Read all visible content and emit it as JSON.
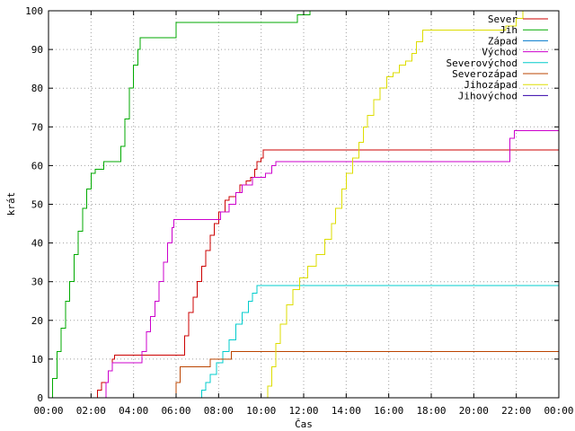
{
  "chart_data": {
    "type": "line",
    "title": "",
    "xlabel": "Čas",
    "ylabel": "krát",
    "xlim": [
      0,
      24
    ],
    "ylim": [
      0,
      100
    ],
    "x_ticks": [
      {
        "value": 0,
        "label": "00:00"
      },
      {
        "value": 2,
        "label": "02:00"
      },
      {
        "value": 4,
        "label": "04:00"
      },
      {
        "value": 6,
        "label": "06:00"
      },
      {
        "value": 8,
        "label": "08:00"
      },
      {
        "value": 10,
        "label": "10:00"
      },
      {
        "value": 12,
        "label": "12:00"
      },
      {
        "value": 14,
        "label": "14:00"
      },
      {
        "value": 16,
        "label": "16:00"
      },
      {
        "value": 18,
        "label": "18:00"
      },
      {
        "value": 20,
        "label": "20:00"
      },
      {
        "value": 22,
        "label": "22:00"
      },
      {
        "value": 24,
        "label": "00:00"
      }
    ],
    "y_ticks": [
      {
        "value": 0,
        "label": "0"
      },
      {
        "value": 10,
        "label": "10"
      },
      {
        "value": 20,
        "label": "20"
      },
      {
        "value": 30,
        "label": "30"
      },
      {
        "value": 40,
        "label": "40"
      },
      {
        "value": 50,
        "label": "50"
      },
      {
        "value": 60,
        "label": "60"
      },
      {
        "value": 70,
        "label": "70"
      },
      {
        "value": 80,
        "label": "80"
      },
      {
        "value": 90,
        "label": "90"
      },
      {
        "value": 100,
        "label": "100"
      }
    ],
    "grid": true,
    "legend_position": "top-right",
    "series": [
      {
        "name": "Sever",
        "color": "#cc0000",
        "points": [
          [
            2.1,
            0
          ],
          [
            2.3,
            2
          ],
          [
            2.5,
            4
          ],
          [
            2.8,
            7
          ],
          [
            3.0,
            10
          ],
          [
            3.1,
            11
          ],
          [
            6.2,
            11
          ],
          [
            6.4,
            16
          ],
          [
            6.6,
            22
          ],
          [
            6.8,
            26
          ],
          [
            7.0,
            30
          ],
          [
            7.2,
            34
          ],
          [
            7.4,
            38
          ],
          [
            7.6,
            42
          ],
          [
            7.8,
            45
          ],
          [
            8.0,
            48
          ],
          [
            8.3,
            51
          ],
          [
            8.5,
            52
          ],
          [
            8.8,
            53
          ],
          [
            9.0,
            55
          ],
          [
            9.3,
            56
          ],
          [
            9.5,
            57
          ],
          [
            9.7,
            59
          ],
          [
            9.8,
            61
          ],
          [
            10.0,
            62
          ],
          [
            10.1,
            64
          ],
          [
            24.0,
            64
          ]
        ]
      },
      {
        "name": "Jih",
        "color": "#00aa00",
        "points": [
          [
            0,
            0
          ],
          [
            0.2,
            5
          ],
          [
            0.4,
            12
          ],
          [
            0.6,
            18
          ],
          [
            0.8,
            25
          ],
          [
            1.0,
            30
          ],
          [
            1.2,
            37
          ],
          [
            1.4,
            43
          ],
          [
            1.6,
            49
          ],
          [
            1.8,
            54
          ],
          [
            2.0,
            58
          ],
          [
            2.2,
            59
          ],
          [
            2.6,
            61
          ],
          [
            3.2,
            61
          ],
          [
            3.4,
            65
          ],
          [
            3.6,
            72
          ],
          [
            3.8,
            80
          ],
          [
            4.0,
            86
          ],
          [
            4.2,
            90
          ],
          [
            4.3,
            93
          ],
          [
            5.8,
            93
          ],
          [
            6.0,
            97
          ],
          [
            11.5,
            97
          ],
          [
            11.7,
            99
          ],
          [
            12.2,
            99
          ],
          [
            12.3,
            100
          ]
        ]
      },
      {
        "name": "Západ",
        "color": "#0077cc",
        "points": []
      },
      {
        "name": "Východ",
        "color": "#cc00cc",
        "points": [
          [
            2.6,
            0
          ],
          [
            2.7,
            4
          ],
          [
            2.8,
            7
          ],
          [
            3.0,
            9
          ],
          [
            4.3,
            9
          ],
          [
            4.4,
            12
          ],
          [
            4.6,
            17
          ],
          [
            4.8,
            21
          ],
          [
            5.0,
            25
          ],
          [
            5.2,
            30
          ],
          [
            5.4,
            35
          ],
          [
            5.6,
            40
          ],
          [
            5.8,
            44
          ],
          [
            5.9,
            46
          ],
          [
            8.0,
            46
          ],
          [
            8.1,
            48
          ],
          [
            8.5,
            50
          ],
          [
            8.8,
            53
          ],
          [
            9.1,
            55
          ],
          [
            9.6,
            57
          ],
          [
            10.2,
            58
          ],
          [
            10.5,
            60
          ],
          [
            10.7,
            61
          ],
          [
            21.5,
            61
          ],
          [
            21.7,
            67
          ],
          [
            21.9,
            69
          ],
          [
            24.0,
            69
          ]
        ]
      },
      {
        "name": "Severovýchod",
        "color": "#00cccc",
        "points": [
          [
            7.0,
            0
          ],
          [
            7.2,
            2
          ],
          [
            7.4,
            4
          ],
          [
            7.6,
            6
          ],
          [
            7.9,
            9
          ],
          [
            8.2,
            12
          ],
          [
            8.5,
            15
          ],
          [
            8.8,
            19
          ],
          [
            9.1,
            22
          ],
          [
            9.4,
            25
          ],
          [
            9.6,
            27
          ],
          [
            9.8,
            29
          ],
          [
            24.0,
            29
          ]
        ]
      },
      {
        "name": "Severozápad",
        "color": "#bb4400",
        "points": [
          [
            5.9,
            0
          ],
          [
            6.0,
            4
          ],
          [
            6.2,
            8
          ],
          [
            7.5,
            8
          ],
          [
            7.6,
            10
          ],
          [
            8.5,
            10
          ],
          [
            8.6,
            12
          ],
          [
            24.0,
            12
          ]
        ]
      },
      {
        "name": "Jihozápad",
        "color": "#dddd00",
        "points": [
          [
            10.0,
            0
          ],
          [
            10.3,
            3
          ],
          [
            10.5,
            8
          ],
          [
            10.7,
            14
          ],
          [
            10.9,
            19
          ],
          [
            11.2,
            24
          ],
          [
            11.5,
            28
          ],
          [
            11.8,
            31
          ],
          [
            12.2,
            34
          ],
          [
            12.6,
            37
          ],
          [
            13.0,
            41
          ],
          [
            13.3,
            45
          ],
          [
            13.5,
            49
          ],
          [
            13.8,
            54
          ],
          [
            14.0,
            58
          ],
          [
            14.3,
            62
          ],
          [
            14.6,
            66
          ],
          [
            14.8,
            70
          ],
          [
            15.0,
            73
          ],
          [
            15.3,
            77
          ],
          [
            15.6,
            80
          ],
          [
            15.9,
            83
          ],
          [
            16.2,
            84
          ],
          [
            16.5,
            86
          ],
          [
            16.8,
            87
          ],
          [
            17.1,
            89
          ],
          [
            17.3,
            92
          ],
          [
            17.6,
            95
          ],
          [
            20.5,
            95
          ],
          [
            21.5,
            96
          ],
          [
            22.0,
            98
          ],
          [
            22.3,
            100
          ]
        ]
      },
      {
        "name": "Jihovýchod",
        "color": "#3300aa",
        "points": []
      }
    ]
  }
}
